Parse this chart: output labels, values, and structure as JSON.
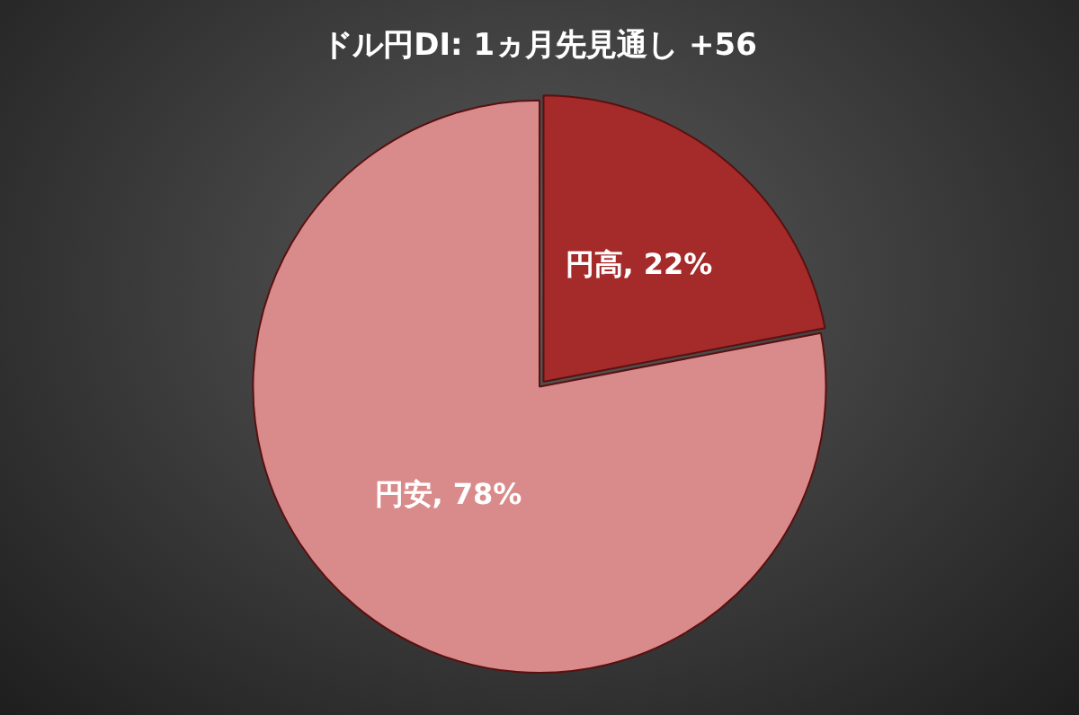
{
  "chart_data": {
    "type": "pie",
    "title": "ドル円DI: 1ヵ月先見通し +56",
    "categories": [
      "円高",
      "円安"
    ],
    "values": [
      22,
      78
    ],
    "colors": [
      "#a52a2a",
      "#d98a8a"
    ],
    "value_labels": [
      "22%",
      "78%"
    ],
    "legend": false
  }
}
